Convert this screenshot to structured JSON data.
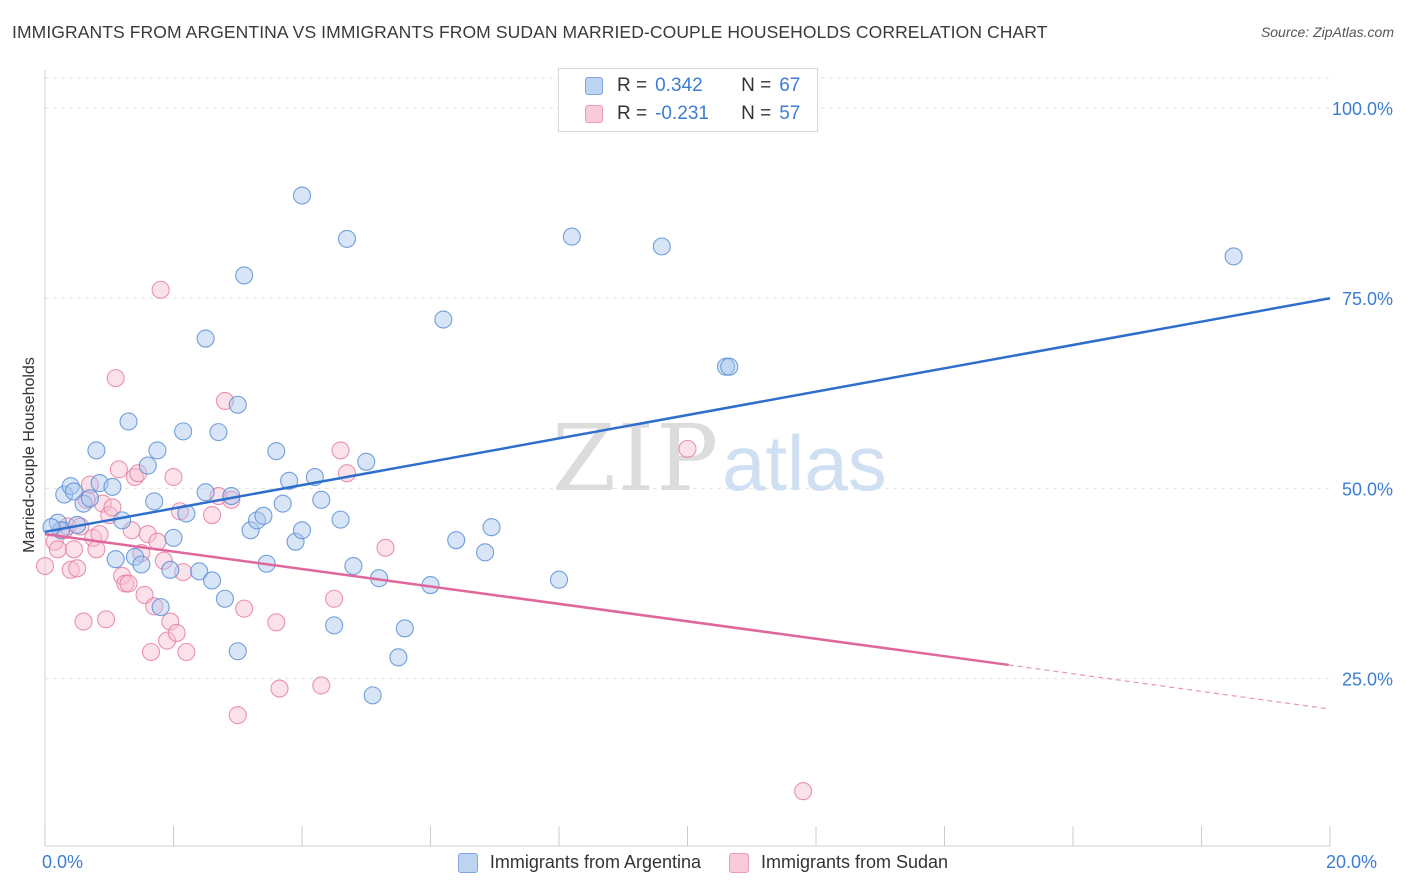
{
  "header": {
    "title": "IMMIGRANTS FROM ARGENTINA VS IMMIGRANTS FROM SUDAN MARRIED-COUPLE HOUSEHOLDS CORRELATION CHART",
    "source": "Source: ZipAtlas.com"
  },
  "watermark": {
    "zip": "ZIP",
    "atlas": "atlas"
  },
  "legend": {
    "rows": [
      {
        "r_label": "R =",
        "r_value": "0.342",
        "n_label": "N =",
        "n_value": "67"
      },
      {
        "r_label": "R =",
        "r_value": "-0.231",
        "n_label": "N =",
        "n_value": "57"
      }
    ]
  },
  "chart_data": {
    "type": "scatter",
    "ylabel": "Married-couple Households",
    "x_tick_labels": {
      "min": "0.0%",
      "max": "20.0%"
    },
    "y_tick_labels": [
      "100.0%",
      "75.0%",
      "50.0%",
      "25.0%"
    ],
    "xlim": [
      0,
      20
    ],
    "ylim": [
      3,
      105
    ],
    "y_ticks": [
      100,
      75,
      50,
      25
    ],
    "grid": "horizontal dashed",
    "legend_position": "top-center",
    "colors": {
      "argentina": "#5b8fd6",
      "argentina_fill": "#a9c6ee",
      "sudan": "#e77fa3",
      "sudan_fill": "#f6bfd1",
      "argentina_line": "#2f6fcc",
      "sudan_line": "#e0679a"
    },
    "series": [
      {
        "name": "Immigrants from Argentina",
        "r": 0.342,
        "n": 67,
        "trend": {
          "x0": 0,
          "y0": 44.3,
          "x1": 20,
          "y1": 75.0
        },
        "points": [
          [
            0.2,
            45.5
          ],
          [
            0.25,
            44.5
          ],
          [
            0.3,
            49.2
          ],
          [
            0.4,
            50.3
          ],
          [
            0.45,
            49.6
          ],
          [
            0.5,
            45.2
          ],
          [
            0.6,
            48.0
          ],
          [
            0.7,
            48.7
          ],
          [
            0.8,
            55.0
          ],
          [
            0.85,
            50.7
          ],
          [
            1.05,
            50.2
          ],
          [
            1.1,
            40.7
          ],
          [
            1.2,
            45.8
          ],
          [
            1.3,
            58.8
          ],
          [
            1.4,
            41.0
          ],
          [
            1.5,
            40.0
          ],
          [
            1.6,
            53.0
          ],
          [
            1.7,
            48.3
          ],
          [
            1.75,
            55.0
          ],
          [
            1.8,
            34.4
          ],
          [
            1.95,
            39.3
          ],
          [
            2.0,
            43.5
          ],
          [
            2.15,
            57.5
          ],
          [
            2.2,
            46.7
          ],
          [
            2.4,
            39.1
          ],
          [
            2.5,
            49.5
          ],
          [
            2.5,
            69.7
          ],
          [
            2.6,
            37.9
          ],
          [
            2.7,
            57.4
          ],
          [
            2.8,
            35.5
          ],
          [
            2.9,
            49.0
          ],
          [
            3.0,
            61.0
          ],
          [
            3.0,
            28.6
          ],
          [
            3.1,
            78.0
          ],
          [
            3.2,
            44.5
          ],
          [
            3.3,
            45.8
          ],
          [
            3.4,
            46.4
          ],
          [
            3.45,
            40.1
          ],
          [
            3.6,
            54.9
          ],
          [
            3.7,
            48.0
          ],
          [
            3.8,
            51.0
          ],
          [
            3.9,
            43.0
          ],
          [
            4.0,
            44.5
          ],
          [
            4.0,
            88.5
          ],
          [
            4.2,
            51.5
          ],
          [
            4.3,
            48.5
          ],
          [
            4.5,
            32.0
          ],
          [
            4.6,
            45.9
          ],
          [
            4.7,
            82.8
          ],
          [
            4.8,
            39.8
          ],
          [
            5.0,
            53.5
          ],
          [
            5.1,
            22.8
          ],
          [
            5.2,
            38.2
          ],
          [
            5.5,
            27.8
          ],
          [
            5.6,
            31.6
          ],
          [
            6.0,
            37.3
          ],
          [
            6.2,
            72.2
          ],
          [
            6.4,
            43.2
          ],
          [
            6.85,
            41.6
          ],
          [
            6.95,
            44.9
          ],
          [
            8.0,
            38.0
          ],
          [
            8.2,
            83.1
          ],
          [
            9.6,
            81.8
          ],
          [
            10.6,
            66.0
          ],
          [
            10.65,
            66.0
          ],
          [
            18.5,
            80.5
          ],
          [
            0.1,
            44.9
          ]
        ]
      },
      {
        "name": "Immigrants from Sudan",
        "r": -0.231,
        "n": 57,
        "trend": {
          "x0": 0,
          "y0": 44.0,
          "x1": 15,
          "y1": 26.8,
          "x_dash_end": 20,
          "y_dash_end": 21.0
        },
        "points": [
          [
            0.0,
            39.8
          ],
          [
            0.15,
            43.0
          ],
          [
            0.2,
            42.0
          ],
          [
            0.3,
            44.5
          ],
          [
            0.35,
            45.0
          ],
          [
            0.4,
            39.3
          ],
          [
            0.45,
            42.0
          ],
          [
            0.5,
            39.5
          ],
          [
            0.55,
            45.0
          ],
          [
            0.6,
            32.5
          ],
          [
            0.65,
            48.5
          ],
          [
            0.7,
            50.5
          ],
          [
            0.75,
            43.5
          ],
          [
            0.8,
            42.0
          ],
          [
            0.85,
            44.0
          ],
          [
            0.9,
            48.0
          ],
          [
            0.95,
            32.8
          ],
          [
            1.0,
            46.5
          ],
          [
            1.05,
            47.5
          ],
          [
            1.1,
            64.5
          ],
          [
            1.15,
            52.5
          ],
          [
            1.2,
            38.5
          ],
          [
            1.25,
            37.5
          ],
          [
            1.3,
            37.5
          ],
          [
            1.35,
            44.5
          ],
          [
            1.4,
            51.5
          ],
          [
            1.45,
            52.0
          ],
          [
            1.5,
            41.5
          ],
          [
            1.55,
            36.0
          ],
          [
            1.6,
            44.0
          ],
          [
            1.65,
            28.5
          ],
          [
            1.7,
            34.5
          ],
          [
            1.75,
            43.0
          ],
          [
            1.8,
            76.1
          ],
          [
            1.85,
            40.5
          ],
          [
            1.9,
            30.0
          ],
          [
            1.95,
            32.5
          ],
          [
            2.0,
            51.5
          ],
          [
            2.05,
            31.0
          ],
          [
            2.1,
            47.0
          ],
          [
            2.15,
            39.0
          ],
          [
            2.2,
            28.5
          ],
          [
            2.6,
            46.5
          ],
          [
            2.7,
            49.0
          ],
          [
            2.8,
            61.5
          ],
          [
            2.9,
            48.5
          ],
          [
            3.0,
            20.2
          ],
          [
            3.1,
            34.2
          ],
          [
            3.6,
            32.4
          ],
          [
            3.65,
            23.7
          ],
          [
            4.3,
            24.1
          ],
          [
            4.5,
            35.5
          ],
          [
            4.6,
            55.0
          ],
          [
            4.7,
            52.0
          ],
          [
            5.3,
            42.2
          ],
          [
            10.0,
            55.2
          ],
          [
            11.8,
            10.2
          ]
        ]
      }
    ]
  }
}
